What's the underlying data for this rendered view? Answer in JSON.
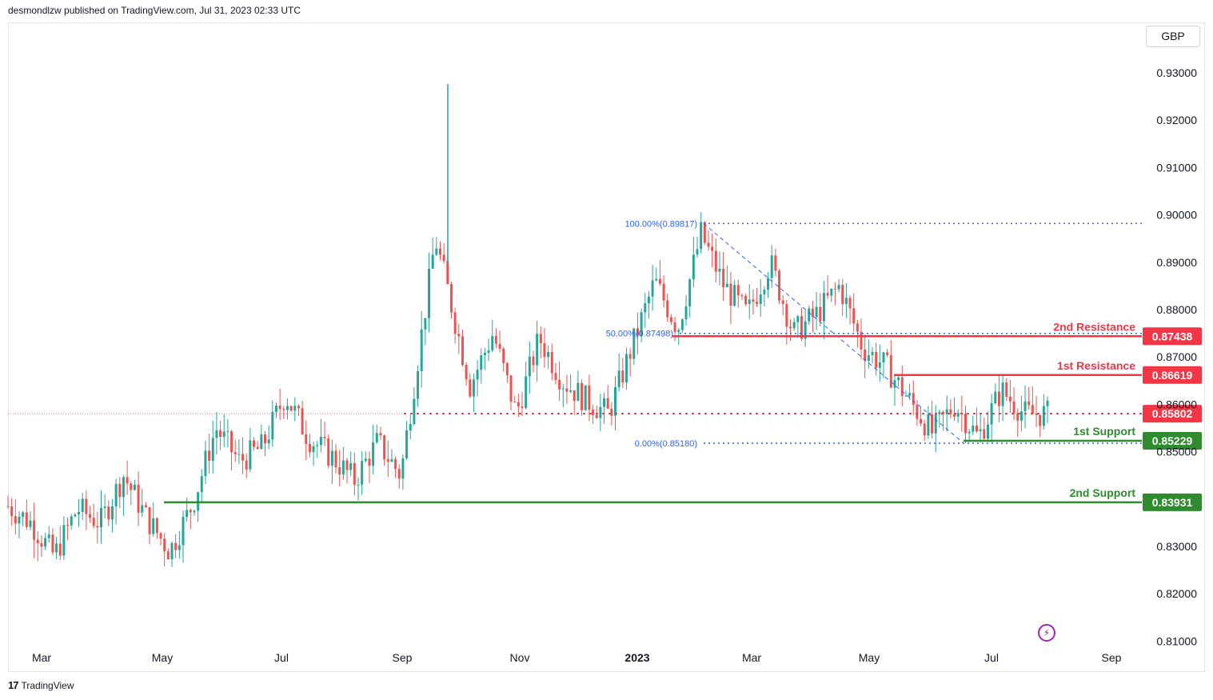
{
  "header": {
    "published": "desmondlzw published on TradingView.com, Jul 31, 2023 02:33 UTC"
  },
  "currency": "GBP",
  "footer": {
    "brand": "TradingView"
  },
  "colors": {
    "up": "#26a69a",
    "down": "#ef5350",
    "resistance": "#f23645",
    "support": "#2e8b2e",
    "fib": "#2962ff"
  },
  "chart_data": {
    "type": "candlestick",
    "ylim": [
      0.8,
      0.935
    ],
    "x_ticks": [
      "Mar",
      "May",
      "Jul",
      "Sep",
      "Nov",
      "2023",
      "Mar",
      "May",
      "Jul",
      "Sep"
    ],
    "y_ticks": [
      "0.93000",
      "0.92000",
      "0.91000",
      "0.90000",
      "0.89000",
      "0.88000",
      "0.87000",
      "0.86000",
      "0.85000",
      "0.83000",
      "0.82000",
      "0.81000"
    ],
    "levels": [
      {
        "label": "2nd Resistance",
        "value": "0.87438",
        "kind": "resistance"
      },
      {
        "label": "1st Resistance",
        "value": "0.86619",
        "kind": "resistance"
      },
      {
        "label": "",
        "value": "0.85802",
        "kind": "current"
      },
      {
        "label": "1st Support",
        "value": "0.85229",
        "kind": "support"
      },
      {
        "label": "2nd Support",
        "value": "0.83931",
        "kind": "support"
      }
    ],
    "fib": [
      {
        "label": "100.00%(0.89817)",
        "value": 0.89817
      },
      {
        "label": "50.00%(0.87498)",
        "value": 0.87498
      },
      {
        "label": "0.00%(0.85180)",
        "value": 0.8518
      }
    ],
    "series": [
      {
        "t": 0,
        "c": 0.8385
      },
      {
        "t": 0.02,
        "c": 0.835
      },
      {
        "t": 0.04,
        "c": 0.828
      },
      {
        "t": 0.06,
        "c": 0.838
      },
      {
        "t": 0.08,
        "c": 0.835
      },
      {
        "t": 0.1,
        "c": 0.845
      },
      {
        "t": 0.12,
        "c": 0.836
      },
      {
        "t": 0.14,
        "c": 0.829
      },
      {
        "t": 0.16,
        "c": 0.839
      },
      {
        "t": 0.18,
        "c": 0.855
      },
      {
        "t": 0.2,
        "c": 0.848
      },
      {
        "t": 0.22,
        "c": 0.851
      },
      {
        "t": 0.24,
        "c": 0.862
      },
      {
        "t": 0.26,
        "c": 0.853
      },
      {
        "t": 0.28,
        "c": 0.849
      },
      {
        "t": 0.3,
        "c": 0.844
      },
      {
        "t": 0.32,
        "c": 0.852
      },
      {
        "t": 0.34,
        "c": 0.845
      },
      {
        "t": 0.36,
        "c": 0.878
      },
      {
        "t": 0.37,
        "c": 0.895
      },
      {
        "t": 0.38,
        "c": 0.885
      },
      {
        "t": 0.4,
        "c": 0.864
      },
      {
        "t": 0.42,
        "c": 0.875
      },
      {
        "t": 0.44,
        "c": 0.858
      },
      {
        "t": 0.46,
        "c": 0.874
      },
      {
        "t": 0.48,
        "c": 0.865
      },
      {
        "t": 0.5,
        "c": 0.861
      },
      {
        "t": 0.52,
        "c": 0.858
      },
      {
        "t": 0.54,
        "c": 0.872
      },
      {
        "t": 0.56,
        "c": 0.886
      },
      {
        "t": 0.58,
        "c": 0.876
      },
      {
        "t": 0.6,
        "c": 0.896
      },
      {
        "t": 0.62,
        "c": 0.885
      },
      {
        "t": 0.64,
        "c": 0.879
      },
      {
        "t": 0.66,
        "c": 0.89
      },
      {
        "t": 0.68,
        "c": 0.875
      },
      {
        "t": 0.7,
        "c": 0.879
      },
      {
        "t": 0.72,
        "c": 0.885
      },
      {
        "t": 0.74,
        "c": 0.872
      },
      {
        "t": 0.76,
        "c": 0.868
      },
      {
        "t": 0.78,
        "c": 0.861
      },
      {
        "t": 0.8,
        "c": 0.854
      },
      {
        "t": 0.82,
        "c": 0.86
      },
      {
        "t": 0.84,
        "c": 0.853
      },
      {
        "t": 0.86,
        "c": 0.863
      },
      {
        "t": 0.88,
        "c": 0.858
      },
      {
        "t": 0.9,
        "c": 0.858
      }
    ]
  }
}
